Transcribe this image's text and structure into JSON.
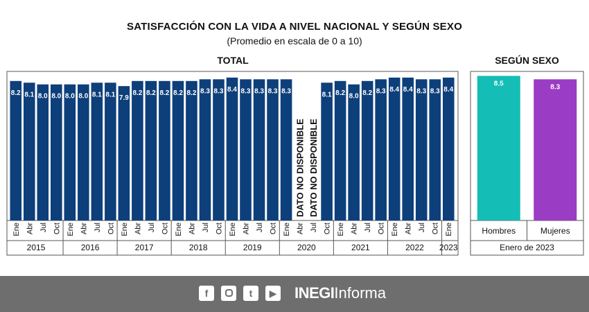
{
  "chart_data": [
    {
      "type": "bar",
      "title": "SATISFACCIÓN CON LA VIDA A NIVEL NACIONAL Y SEGÚN SEXO",
      "subtitle": "(Promedio en escala de 0 a 10)",
      "panel_title": "TOTAL",
      "ylim": [
        0,
        8.6
      ],
      "color": "#0d3f7a",
      "missing_label": "DATO NO DISPONIBLE",
      "categories": [
        "Ene",
        "Abr",
        "Jul",
        "Oct",
        "Ene",
        "Abr",
        "Jul",
        "Oct",
        "Ene",
        "Abr",
        "Jul",
        "Oct",
        "Ene",
        "Abr",
        "Jul",
        "Oct",
        "Ene",
        "Abr",
        "Jul",
        "Oct",
        "Ene",
        "Abr",
        "Jul",
        "Oct",
        "Ene",
        "Abr",
        "Jul",
        "Oct",
        "Ene",
        "Abr",
        "Jul",
        "Oct",
        "Ene"
      ],
      "values": [
        8.2,
        8.1,
        8.0,
        8.0,
        8.0,
        8.0,
        8.1,
        8.1,
        7.9,
        8.2,
        8.2,
        8.2,
        8.2,
        8.2,
        8.3,
        8.3,
        8.4,
        8.3,
        8.3,
        8.3,
        8.3,
        null,
        null,
        8.1,
        8.2,
        8.0,
        8.2,
        8.3,
        8.4,
        8.4,
        8.3,
        8.3,
        8.4
      ],
      "value_labels": [
        "8.2",
        "8.1",
        "8.0",
        "8.0",
        "8.0",
        "8.0",
        "8.1",
        "8.1",
        "7.9",
        "8.2",
        "8.2",
        "8.2",
        "8.2",
        "8.2",
        "8.3",
        "8.3",
        "8.4",
        "8.3",
        "8.3",
        "8.3",
        "8.3",
        null,
        null,
        "8.1",
        "8.2",
        "8.0",
        "8.2",
        "8.3",
        "8.4",
        "8.4",
        "8.3",
        "8.3",
        "8.4"
      ],
      "years": [
        {
          "label": "2015",
          "count": 4
        },
        {
          "label": "2016",
          "count": 4
        },
        {
          "label": "2017",
          "count": 4
        },
        {
          "label": "2018",
          "count": 4
        },
        {
          "label": "2019",
          "count": 4
        },
        {
          "label": "2020",
          "count": 4
        },
        {
          "label": "2021",
          "count": 4
        },
        {
          "label": "2022",
          "count": 4
        },
        {
          "label": "2023",
          "count": 1
        }
      ]
    },
    {
      "type": "bar",
      "panel_title": "SEGÚN SEXO",
      "ylim": [
        0,
        8.6
      ],
      "categories": [
        "Hombres",
        "Mujeres"
      ],
      "values": [
        8.5,
        8.3
      ],
      "value_labels": [
        "8.5",
        "8.3"
      ],
      "colors": [
        "#14bdb5",
        "#9b3cc4"
      ],
      "group_label": "Enero de 2023"
    }
  ],
  "footer": {
    "social_icons": [
      "facebook-icon",
      "instagram-icon",
      "twitter-icon",
      "youtube-icon"
    ],
    "brand_bold": "INEGI",
    "brand_light": "Informa",
    "background": "#6e6e6e"
  }
}
